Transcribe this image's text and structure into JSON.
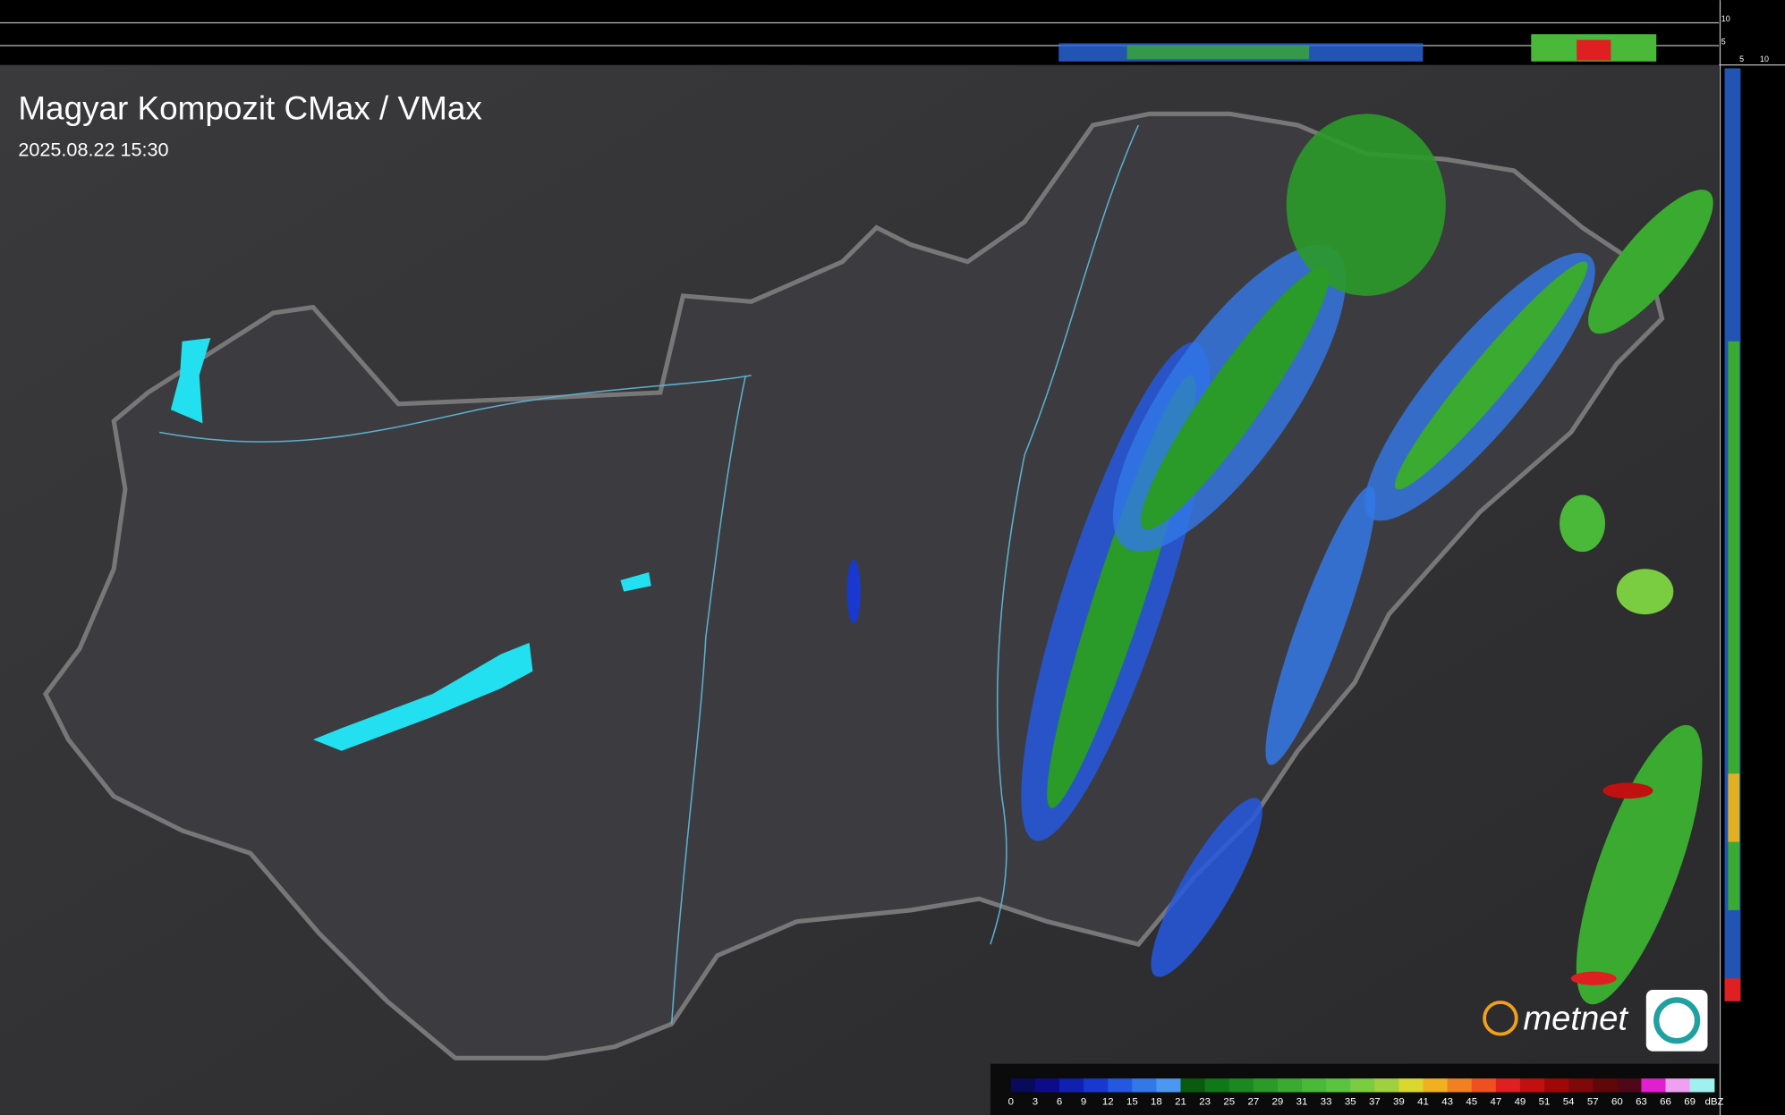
{
  "header": {
    "title": "Magyar Kompozit CMax / VMax",
    "timestamp": "2025.08.22 15:30"
  },
  "profile": {
    "top_ticks": [
      "10",
      "5"
    ],
    "side_ticks": [
      "5",
      "10"
    ]
  },
  "logo": {
    "text": "metnet"
  },
  "legend": {
    "unit": "dBZ",
    "labels": [
      0,
      3,
      6,
      9,
      12,
      15,
      18,
      21,
      23,
      25,
      27,
      29,
      31,
      33,
      35,
      37,
      39,
      41,
      43,
      45,
      47,
      49,
      51,
      54,
      57,
      60,
      63,
      66,
      69
    ],
    "colors": [
      "#0a0a5a",
      "#0c0c8a",
      "#1020b0",
      "#1838d0",
      "#2458e0",
      "#3278e8",
      "#4a98f0",
      "#0a5a10",
      "#107818",
      "#1a8a20",
      "#2a9a28",
      "#3aaa30",
      "#4ab838",
      "#5ac440",
      "#7acc40",
      "#a0d040",
      "#d8d830",
      "#f0b020",
      "#f08020",
      "#f05020",
      "#e02020",
      "#c01010",
      "#a00808",
      "#800808",
      "#600808",
      "#500818",
      "#e020d0",
      "#f0a0f0",
      "#a0f0f0"
    ]
  }
}
